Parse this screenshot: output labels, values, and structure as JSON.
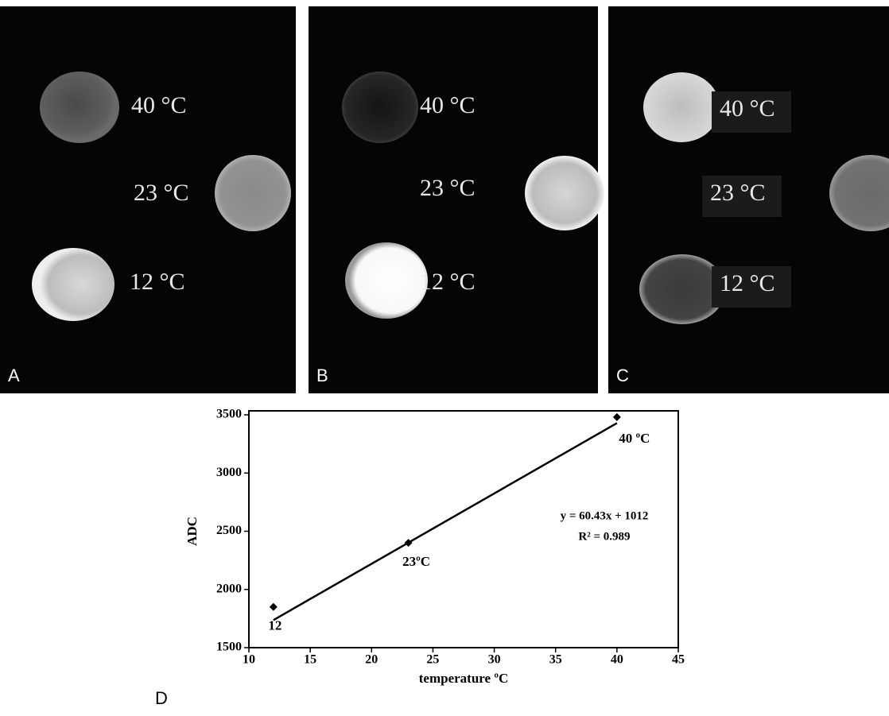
{
  "panels": [
    {
      "label": "A",
      "annotations": [
        "40 °C",
        "23 °C",
        "12 °C"
      ]
    },
    {
      "label": "B",
      "annotations": [
        "40 °C",
        "23 °C",
        "12 °C"
      ]
    },
    {
      "label": "C",
      "annotations": [
        "40 °C",
        "23 °C",
        "12 °C"
      ]
    }
  ],
  "chart_data": {
    "type": "scatter",
    "panel_label": "D",
    "x_label": "temperature ºC",
    "y_label": "ADC",
    "x": [
      12,
      23,
      40
    ],
    "values": [
      1850,
      2400,
      3480
    ],
    "color": "#000000",
    "point_labels": [
      "12",
      "23ºC",
      "40 ºC"
    ],
    "trendline": {
      "x": [
        12,
        40
      ],
      "values": [
        1737,
        3429
      ]
    },
    "equation": "y = 60.43x + 1012",
    "r_squared": "R² = 0.989",
    "xlim": [
      10,
      45
    ],
    "xticks": [
      10,
      15,
      20,
      25,
      30,
      35,
      40,
      45
    ],
    "ylim": [
      1500,
      3500
    ],
    "yticks": [
      1500,
      2000,
      2500,
      3000,
      3500
    ]
  }
}
